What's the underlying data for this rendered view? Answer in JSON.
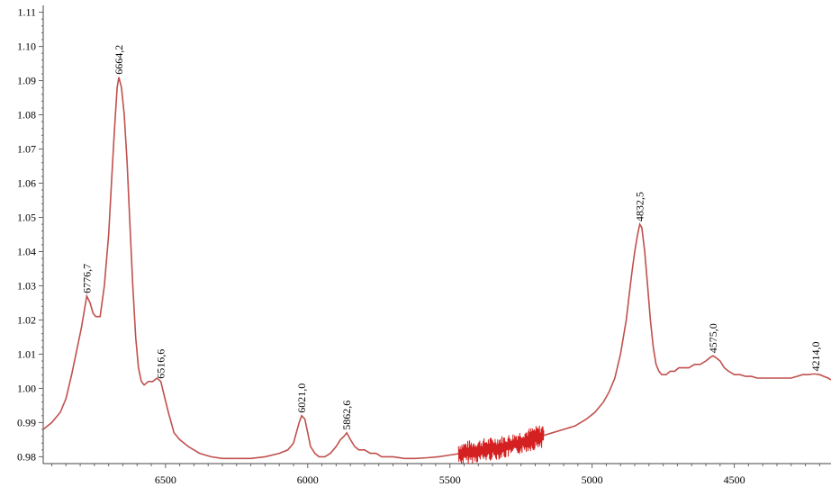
{
  "chart_data": {
    "type": "line",
    "title": "",
    "xlabel": "",
    "ylabel": "",
    "xlim": [
      6930,
      4160
    ],
    "ylim": [
      0.978,
      1.112
    ],
    "x_reversed": true,
    "grid": false,
    "line_color": "#c0504d",
    "noise_color": "#d42020",
    "x_ticks": [
      6500,
      6000,
      5500,
      5000,
      4500
    ],
    "x_tick_labels": [
      "6500",
      "6000",
      "5500",
      "5000",
      "4500"
    ],
    "y_ticks": [
      0.98,
      0.99,
      1.0,
      1.01,
      1.02,
      1.03,
      1.04,
      1.05,
      1.06,
      1.07,
      1.08,
      1.09,
      1.1,
      1.11
    ],
    "y_tick_labels": [
      "0.98",
      "0.99",
      "1.00",
      "1.01",
      "1.02",
      "1.03",
      "1.04",
      "1.05",
      "1.06",
      "1.07",
      "1.08",
      "1.09",
      "1.10",
      "1.11"
    ],
    "series": [
      {
        "x": [
          6930,
          6900,
          6870,
          6850,
          6830,
          6810,
          6795,
          6785,
          6776.7,
          6765,
          6755,
          6745,
          6730,
          6715,
          6700,
          6690,
          6680,
          6670,
          6664.2,
          6655,
          6645,
          6635,
          6625,
          6615,
          6605,
          6595,
          6585,
          6575,
          6560,
          6545,
          6530,
          6516.6,
          6505,
          6490,
          6470,
          6450,
          6420,
          6380,
          6340,
          6300,
          6250,
          6200,
          6150,
          6100,
          6070,
          6050,
          6040,
          6030,
          6021.0,
          6010,
          6000,
          5990,
          5975,
          5960,
          5940,
          5920,
          5900,
          5885,
          5872,
          5862.6,
          5850,
          5835,
          5820,
          5800,
          5780,
          5760,
          5740,
          5720,
          5700,
          5660,
          5620,
          5580,
          5540,
          5500,
          5460,
          5420,
          5380,
          5340,
          5300,
          5260,
          5220,
          5180,
          5140,
          5100,
          5060,
          5020,
          4990,
          4960,
          4940,
          4920,
          4900,
          4880,
          4870,
          4860,
          4850,
          4840,
          4832.5,
          4825,
          4815,
          4805,
          4795,
          4785,
          4775,
          4765,
          4755,
          4740,
          4725,
          4710,
          4695,
          4680,
          4660,
          4640,
          4620,
          4600,
          4585,
          4575.0,
          4565,
          4550,
          4535,
          4520,
          4500,
          4480,
          4460,
          4440,
          4420,
          4400,
          4380,
          4360,
          4340,
          4320,
          4300,
          4280,
          4260,
          4240,
          4225,
          4214.0,
          4200,
          4185,
          4170,
          4160
        ],
        "y": [
          0.988,
          0.99,
          0.993,
          0.997,
          1.004,
          1.012,
          1.018,
          1.023,
          1.027,
          1.025,
          1.022,
          1.021,
          1.021,
          1.03,
          1.045,
          1.06,
          1.075,
          1.088,
          1.091,
          1.088,
          1.08,
          1.066,
          1.048,
          1.03,
          1.015,
          1.006,
          1.002,
          1.001,
          1.002,
          1.002,
          1.003,
          1.002,
          0.998,
          0.993,
          0.987,
          0.985,
          0.983,
          0.981,
          0.98,
          0.9795,
          0.9795,
          0.9795,
          0.98,
          0.981,
          0.982,
          0.984,
          0.987,
          0.99,
          0.992,
          0.991,
          0.987,
          0.983,
          0.981,
          0.98,
          0.98,
          0.981,
          0.983,
          0.985,
          0.986,
          0.987,
          0.985,
          0.983,
          0.982,
          0.982,
          0.981,
          0.981,
          0.98,
          0.98,
          0.98,
          0.9795,
          0.9795,
          0.9797,
          0.98,
          0.9805,
          0.981,
          0.9815,
          0.982,
          0.9825,
          0.983,
          0.984,
          0.985,
          0.986,
          0.987,
          0.988,
          0.989,
          0.991,
          0.993,
          0.996,
          0.999,
          1.003,
          1.01,
          1.02,
          1.027,
          1.034,
          1.04,
          1.045,
          1.048,
          1.047,
          1.04,
          1.03,
          1.02,
          1.012,
          1.007,
          1.005,
          1.004,
          1.004,
          1.005,
          1.005,
          1.006,
          1.006,
          1.006,
          1.007,
          1.007,
          1.008,
          1.009,
          1.0095,
          1.009,
          1.008,
          1.006,
          1.005,
          1.004,
          1.004,
          1.0035,
          1.0035,
          1.003,
          1.003,
          1.003,
          1.003,
          1.003,
          1.003,
          1.003,
          1.0035,
          1.004,
          1.004,
          1.0042,
          1.0042,
          1.004,
          1.0035,
          1.003,
          1.0025
        ]
      }
    ],
    "noisy_region": [
      5470,
      5170
    ],
    "annotations": [
      {
        "text": "6776,7",
        "x": 6776.7,
        "y": 1.027
      },
      {
        "text": "6664,2",
        "x": 6664.2,
        "y": 1.091
      },
      {
        "text": "6516,6",
        "x": 6516.6,
        "y": 1.002
      },
      {
        "text": "6021,0",
        "x": 6021.0,
        "y": 0.992
      },
      {
        "text": "5862,6",
        "x": 5862.6,
        "y": 0.987
      },
      {
        "text": "4832,5",
        "x": 4832.5,
        "y": 1.048
      },
      {
        "text": "4575,0",
        "x": 4575.0,
        "y": 1.0095
      },
      {
        "text": "4214,0",
        "x": 4214.0,
        "y": 1.0042
      }
    ]
  }
}
